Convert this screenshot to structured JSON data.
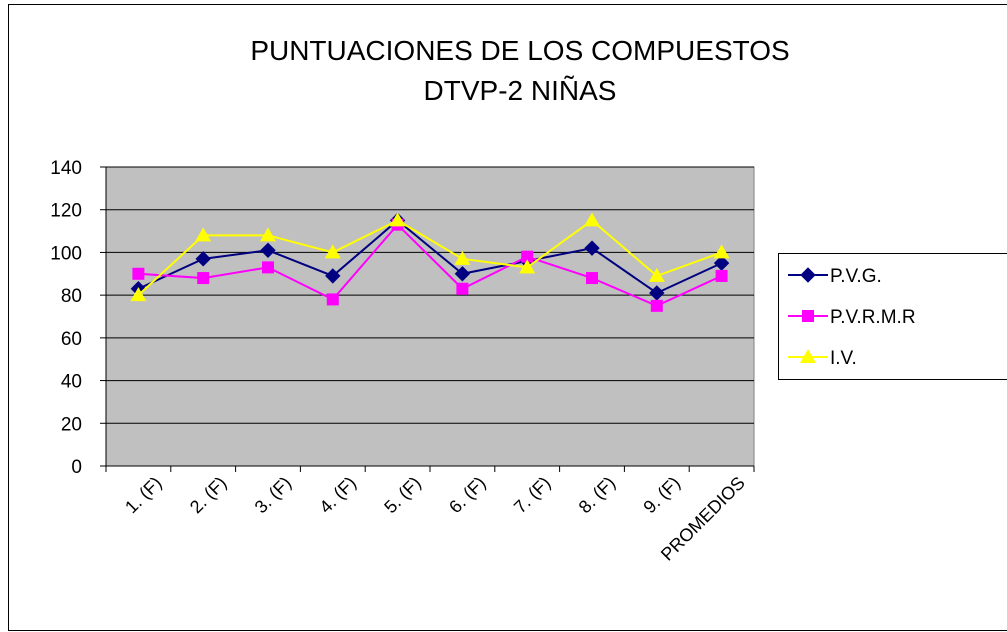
{
  "chart_data": {
    "type": "line",
    "title": [
      "PUNTUACIONES DE LOS COMPUESTOS",
      "DTVP-2 NIÑAS"
    ],
    "categories": [
      "1. (F)",
      "2. (F)",
      "3. (F)",
      "4. (F)",
      "5. (F)",
      "6. (F)",
      "7. (F)",
      "8. (F)",
      "9. (F)",
      "PROMEDIOS"
    ],
    "series": [
      {
        "name": "P.V.G.",
        "color": "#000080",
        "marker": "diamond",
        "values": [
          83,
          97,
          101,
          89,
          115,
          90,
          96,
          102,
          81,
          95
        ]
      },
      {
        "name": "P.V.R.M.R",
        "color": "#ff00ff",
        "marker": "square",
        "values": [
          90,
          88,
          93,
          78,
          113,
          83,
          98,
          88,
          75,
          89
        ]
      },
      {
        "name": "I.V.",
        "color": "#ffff00",
        "marker": "triangle",
        "values": [
          80,
          108,
          108,
          100,
          115,
          97,
          93,
          115,
          89,
          100
        ]
      }
    ],
    "ylim": [
      0,
      140
    ],
    "yticks": [
      0,
      20,
      40,
      60,
      80,
      100,
      120,
      140
    ],
    "grid": true,
    "legend": "right"
  }
}
